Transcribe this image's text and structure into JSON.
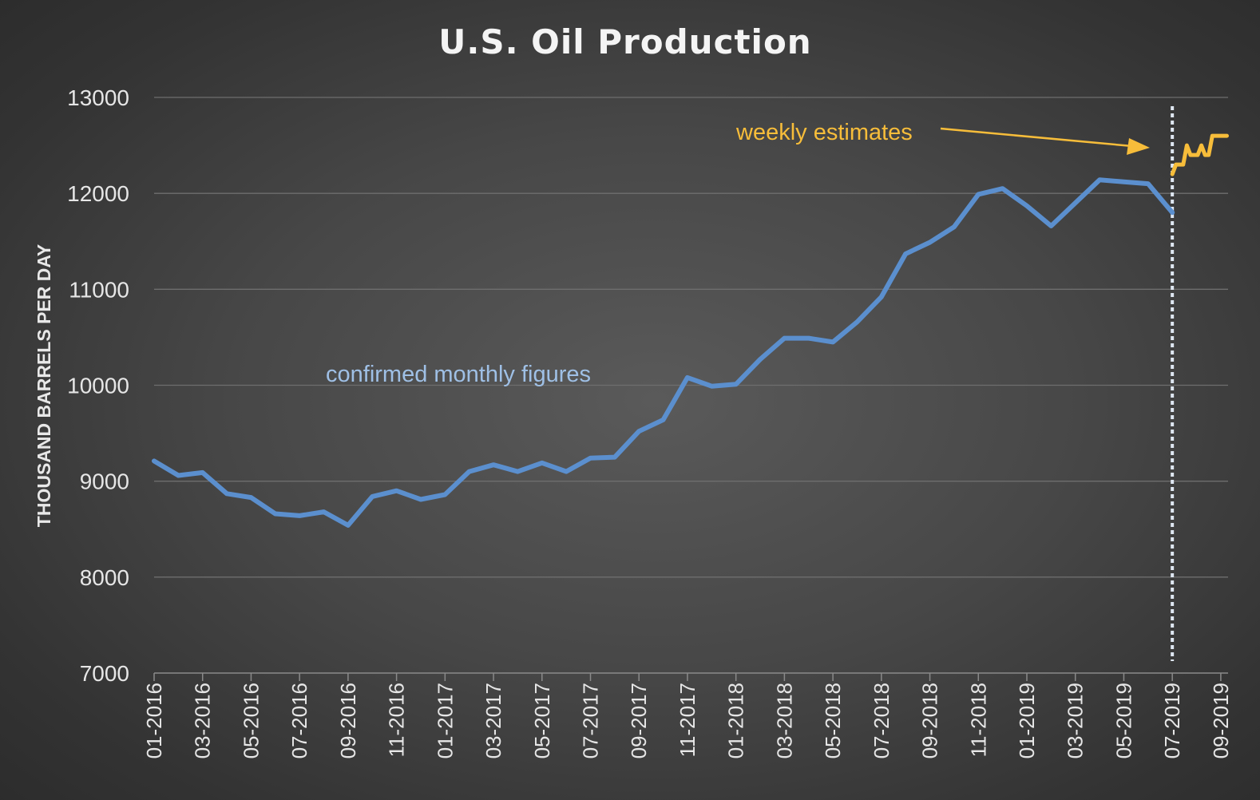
{
  "chart_data": {
    "type": "line",
    "title": "U.S. Oil Production",
    "ylabel": "THOUSAND BARRELS PER DAY",
    "xlabel": "",
    "ylim": [
      7000,
      13000
    ],
    "yticks": [
      7000,
      8000,
      9000,
      10000,
      11000,
      12000,
      13000
    ],
    "grid": true,
    "x_tick_labels": [
      "01-2016",
      "03-2016",
      "05-2016",
      "07-2016",
      "09-2016",
      "11-2016",
      "01-2017",
      "03-2017",
      "05-2017",
      "07-2017",
      "09-2017",
      "11-2017",
      "01-2018",
      "03-2018",
      "05-2018",
      "07-2018",
      "09-2018",
      "11-2018",
      "01-2019",
      "03-2019",
      "05-2019",
      "07-2019",
      "09-2019"
    ],
    "series": [
      {
        "key": "monthly",
        "color": "#5b8fce",
        "x": [
          "01-2016",
          "02-2016",
          "03-2016",
          "04-2016",
          "05-2016",
          "06-2016",
          "07-2016",
          "08-2016",
          "09-2016",
          "10-2016",
          "11-2016",
          "12-2016",
          "01-2017",
          "02-2017",
          "03-2017",
          "04-2017",
          "05-2017",
          "06-2017",
          "07-2017",
          "08-2017",
          "09-2017",
          "10-2017",
          "11-2017",
          "12-2017",
          "01-2018",
          "02-2018",
          "03-2018",
          "04-2018",
          "05-2018",
          "06-2018",
          "07-2018",
          "08-2018",
          "09-2018",
          "10-2018",
          "11-2018",
          "12-2018",
          "01-2019",
          "02-2019",
          "03-2019",
          "04-2019",
          "05-2019",
          "06-2019",
          "07-2019"
        ],
        "values": [
          9210,
          9060,
          9090,
          8870,
          8830,
          8660,
          8640,
          8680,
          8540,
          8840,
          8900,
          8810,
          8860,
          9100,
          9170,
          9100,
          9190,
          9100,
          9240,
          9250,
          9520,
          9640,
          10080,
          9990,
          10010,
          10270,
          10490,
          10490,
          10450,
          10660,
          10920,
          11370,
          11490,
          11650,
          11990,
          12050,
          11870,
          11660,
          11900,
          12140,
          12120,
          12100,
          11800
        ]
      },
      {
        "key": "weekly",
        "color": "#f7bd3a",
        "x": [
          "07-2019",
          "07-2019",
          "07-2019",
          "07-2019",
          "08-2019",
          "08-2019",
          "08-2019",
          "08-2019",
          "08-2019",
          "08-2019",
          "09-2019",
          "09-2019",
          "09-2019",
          "09-2019",
          "09-2019",
          "09-2019"
        ],
        "values": [
          12200,
          12300,
          12300,
          12300,
          12500,
          12400,
          12400,
          12400,
          12500,
          12400,
          12400,
          12600,
          12600,
          12600,
          12600,
          12600
        ],
        "x_months": [
          42.0,
          42.15,
          42.3,
          42.45,
          42.6,
          42.75,
          42.9,
          43.05,
          43.2,
          43.35,
          43.5,
          43.65,
          43.8,
          43.95,
          44.1,
          44.25
        ]
      }
    ],
    "divider_at": "07-2019",
    "annotations": [
      {
        "key": "monthly",
        "text": "confirmed monthly figures"
      },
      {
        "key": "weekly",
        "text": "weekly estimates"
      }
    ]
  }
}
